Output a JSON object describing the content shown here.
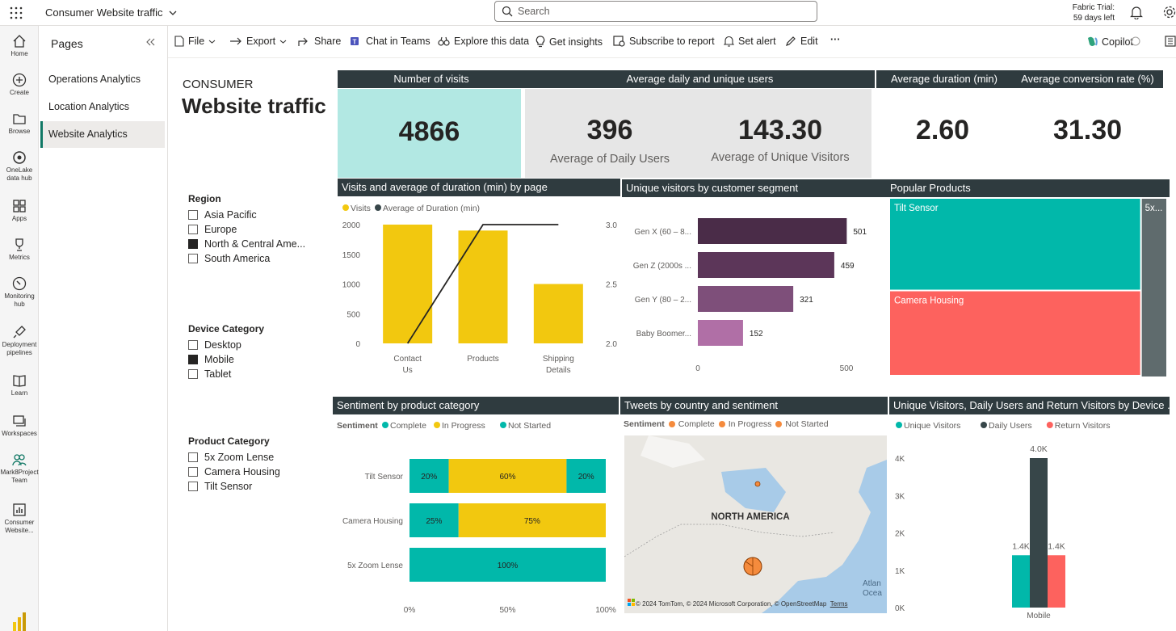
{
  "topbar": {
    "app_title": "Consumer Website traffic",
    "search_placeholder": "Search",
    "trial_line1": "Fabric Trial:",
    "trial_line2": "59 days left"
  },
  "rail": {
    "items": [
      {
        "label": "Home"
      },
      {
        "label": "Create"
      },
      {
        "label": "Browse"
      },
      {
        "label": "OneLake data hub"
      },
      {
        "label": "Apps"
      },
      {
        "label": "Metrics"
      },
      {
        "label": "Monitoring hub"
      },
      {
        "label": "Deployment pipelines"
      },
      {
        "label": "Learn"
      },
      {
        "label": "Workspaces"
      },
      {
        "label": "Mark8Project Team"
      },
      {
        "label": "Consumer Website..."
      }
    ]
  },
  "pages": {
    "title": "Pages",
    "items": [
      "Operations Analytics",
      "Location Analytics",
      "Website Analytics"
    ]
  },
  "toolbar": {
    "file": "File",
    "export": "Export",
    "share": "Share",
    "chat": "Chat in Teams",
    "explore": "Explore this data",
    "insights": "Get insights",
    "subscribe": "Subscribe to report",
    "alert": "Set alert",
    "edit": "Edit",
    "more": "···",
    "copilot": "Copilot"
  },
  "report": {
    "subtitle": "CONSUMER",
    "title": "Website traffic"
  },
  "kpis": {
    "visits_header": "Number of visits",
    "visits_value": "4866",
    "users_header": "Average daily and unique users",
    "daily_value": "396",
    "daily_label": "Average of Daily Users",
    "unique_value": "143.30",
    "unique_label": "Average of Unique Visitors",
    "duration_header": "Average duration (min)",
    "duration_value": "2.60",
    "conversion_header": "Average  conversion rate (%)",
    "conversion_value": "31.30"
  },
  "slicers": {
    "region": {
      "title": "Region",
      "items": [
        {
          "label": "Asia Pacific",
          "checked": false
        },
        {
          "label": "Europe",
          "checked": false
        },
        {
          "label": "North & Central Ame...",
          "checked": true
        },
        {
          "label": "South America",
          "checked": false
        }
      ]
    },
    "device": {
      "title": "Device Category",
      "items": [
        {
          "label": "Desktop",
          "checked": false
        },
        {
          "label": "Mobile",
          "checked": true
        },
        {
          "label": "Tablet",
          "checked": false
        }
      ]
    },
    "product": {
      "title": "Product Category",
      "items": [
        {
          "label": "5x Zoom Lense",
          "checked": false
        },
        {
          "label": "Camera Housing",
          "checked": false
        },
        {
          "label": "Tilt Sensor",
          "checked": false
        }
      ]
    }
  },
  "visuals": {
    "visits_duration_title": "Visits and average of duration (min) by page",
    "segment_title": "Unique visitors by customer segment",
    "popular_title": "Popular Products",
    "sentiment_title": "Sentiment by product category",
    "tweets_title": "Tweets by country and sentiment",
    "device_title": "Unique Visitors, Daily Users and Return Visitors by Device ..."
  },
  "map": {
    "legend_title": "Sentiment",
    "legend": [
      "Complete",
      "In Progress",
      "Not Started"
    ],
    "label": "NORTH AMERICA",
    "ocean_label": "Atlan Ocea",
    "attribution": "© 2024 TomTom, © 2024 Microsoft Corporation, © OpenStreetMap",
    "terms": "Terms"
  },
  "colors": {
    "header_bg": "#2f3b3f",
    "teal": "#01b8aa",
    "yellow": "#f2c80f",
    "coral": "#fd625e",
    "dark": "#374649",
    "kpi_teal_bg": "#b2e8e3",
    "kpi_grey_bg": "#e6e6e6"
  },
  "chart_data": [
    {
      "id": "visits_duration",
      "type": "bar",
      "title": "Visits and average of duration (min) by page",
      "categories": [
        "Contact Us",
        "Products",
        "Shipping Details"
      ],
      "series": [
        {
          "name": "Visits",
          "kind": "bar",
          "axis": "left",
          "values": [
            2000,
            1900,
            1000
          ]
        },
        {
          "name": "Average of Duration (min)",
          "kind": "line",
          "axis": "right",
          "values": [
            2.0,
            3.0,
            3.0
          ]
        }
      ],
      "left_ticks": [
        "0",
        "500",
        "1000",
        "1500",
        "2000"
      ],
      "right_ticks": [
        "2.0",
        "2.5",
        "3.0"
      ],
      "ylim": [
        0,
        2000
      ],
      "y2lim": [
        2.0,
        3.0
      ]
    },
    {
      "id": "segments",
      "type": "bar",
      "orientation": "horizontal",
      "title": "Unique visitors by customer segment",
      "categories": [
        "Gen X (60 – 8...",
        "Gen Z (2000s ...",
        "Gen Y (80 – 2...",
        "Baby Boomer..."
      ],
      "values": [
        501,
        459,
        321,
        152
      ],
      "labels": [
        "501",
        "459",
        "321",
        "152"
      ],
      "colors": [
        "#4a2c48",
        "#5c3659",
        "#7e4f7a",
        "#b06fa6"
      ],
      "x_ticks": [
        "0",
        "500"
      ],
      "xlim": [
        0,
        500
      ]
    },
    {
      "id": "popular",
      "type": "treemap",
      "title": "Popular Products",
      "items": [
        {
          "label": "Tilt Sensor",
          "value": 38,
          "color": "#01b8aa"
        },
        {
          "label": "Camera Housing",
          "value": 35,
          "color": "#fd625e"
        },
        {
          "label": "5x...",
          "value": 8,
          "color": "#5f6b6d"
        }
      ]
    },
    {
      "id": "sentiment",
      "type": "bar",
      "orientation": "horizontal",
      "stacked": "percent",
      "title": "Sentiment by product category",
      "legend_title": "Sentiment",
      "categories": [
        "Tilt Sensor",
        "Camera Housing",
        "5x Zoom Lense"
      ],
      "series": [
        {
          "name": "Complete",
          "color": "#01b8aa",
          "values": [
            20,
            25,
            100
          ]
        },
        {
          "name": "In Progress",
          "color": "#f2c80f",
          "values": [
            60,
            75,
            0
          ]
        },
        {
          "name": "Not Started",
          "color": "#01b8aa",
          "values": [
            20,
            0,
            0
          ]
        }
      ],
      "x_ticks": [
        "0%",
        "50%",
        "100%"
      ]
    },
    {
      "id": "device",
      "type": "bar",
      "title": "Unique Visitors, Daily Users and Return Visitors by Device ...",
      "categories": [
        "Mobile"
      ],
      "series": [
        {
          "name": "Unique Visitors",
          "color": "#01b8aa",
          "values": [
            1400
          ],
          "label": "1.4K"
        },
        {
          "name": "Daily Users",
          "color": "#374649",
          "values": [
            4000
          ],
          "label": "4.0K"
        },
        {
          "name": "Return Visitors",
          "color": "#fd625e",
          "values": [
            1400
          ],
          "label": "1.4K"
        }
      ],
      "y_ticks": [
        "0K",
        "1K",
        "2K",
        "3K",
        "4K"
      ],
      "ylim": [
        0,
        4000
      ]
    }
  ]
}
